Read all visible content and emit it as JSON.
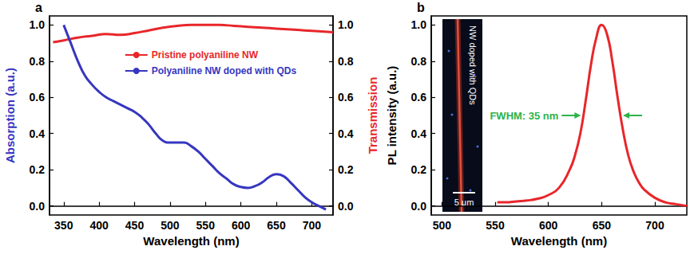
{
  "chart_data": [
    {
      "type": "line",
      "title": "a",
      "x_label": "Wavelength (nm)",
      "y_label": "Absorption (a.u.)",
      "y2_label": "Transmission",
      "xlim": [
        330,
        730
      ],
      "xticks": [
        350,
        400,
        450,
        500,
        550,
        600,
        650,
        700
      ],
      "ylim": [
        -0.05,
        1.05
      ],
      "yticks": [
        {
          "value": 0,
          "label": "0.0"
        },
        0.2,
        0.4,
        0.6,
        0.8,
        {
          "value": 1,
          "label": "1.0"
        }
      ],
      "y2lim": [
        -0.05,
        1.05
      ],
      "y2ticks": [
        {
          "value": 0,
          "label": "0.0"
        },
        0.2,
        0.4,
        0.6,
        0.8,
        {
          "value": 1,
          "label": "1.0"
        }
      ],
      "grid": false,
      "legend": "top",
      "series": [
        {
          "name": "Pristine polyaniline NW",
          "color": "#e8262a",
          "axis": "y2",
          "x": [
            335,
            350,
            370,
            390,
            410,
            430,
            450,
            470,
            490,
            510,
            530,
            550,
            570,
            590,
            610,
            630,
            650,
            670,
            690,
            710,
            730
          ],
          "values": [
            0.905,
            0.915,
            0.93,
            0.94,
            0.95,
            0.945,
            0.955,
            0.97,
            0.985,
            0.995,
            1.0,
            1.0,
            1.0,
            0.995,
            0.99,
            0.985,
            0.98,
            0.975,
            0.97,
            0.965,
            0.96
          ]
        },
        {
          "name": "Polyaniline NW doped with QDs",
          "color": "#3636c0",
          "axis": "y",
          "x": [
            350,
            360,
            370,
            380,
            390,
            400,
            410,
            420,
            430,
            440,
            450,
            460,
            470,
            480,
            490,
            500,
            510,
            520,
            530,
            540,
            550,
            560,
            570,
            580,
            590,
            600,
            610,
            620,
            630,
            640,
            650,
            660,
            670,
            680,
            690,
            700,
            710,
            720
          ],
          "values": [
            1.0,
            0.9,
            0.8,
            0.72,
            0.67,
            0.63,
            0.6,
            0.58,
            0.56,
            0.54,
            0.52,
            0.49,
            0.45,
            0.4,
            0.36,
            0.35,
            0.35,
            0.35,
            0.33,
            0.3,
            0.26,
            0.22,
            0.18,
            0.15,
            0.12,
            0.105,
            0.1,
            0.11,
            0.13,
            0.16,
            0.175,
            0.165,
            0.13,
            0.09,
            0.05,
            0.02,
            0.0,
            -0.02
          ]
        }
      ]
    },
    {
      "type": "line",
      "title": "b",
      "x_label": "Wavelength (nm)",
      "y_label": "PL intensity (a.u.)",
      "xlim": [
        490,
        730
      ],
      "xticks": [
        500,
        550,
        600,
        650,
        700
      ],
      "ylim": [
        -0.05,
        1.05
      ],
      "yticks": [
        {
          "value": 0,
          "label": "0.0"
        },
        0.2,
        0.4,
        0.6,
        0.8,
        {
          "value": 1,
          "label": "1.0"
        }
      ],
      "grid": false,
      "color": "#e8262a",
      "annotation": "FWHM: 35 nm",
      "inset_label": "NW doped with QDs",
      "scale_bar_label": "5 μm",
      "x": [
        552,
        560,
        570,
        580,
        590,
        600,
        610,
        620,
        625,
        630,
        635,
        640,
        645,
        650,
        655,
        660,
        665,
        670,
        675,
        680,
        685,
        690,
        700,
        710,
        720,
        730
      ],
      "values": [
        0.02,
        0.02,
        0.025,
        0.03,
        0.04,
        0.06,
        0.1,
        0.2,
        0.28,
        0.4,
        0.58,
        0.78,
        0.93,
        1.0,
        0.95,
        0.8,
        0.6,
        0.42,
        0.28,
        0.19,
        0.13,
        0.09,
        0.045,
        0.02,
        0.01,
        0.0
      ]
    }
  ]
}
